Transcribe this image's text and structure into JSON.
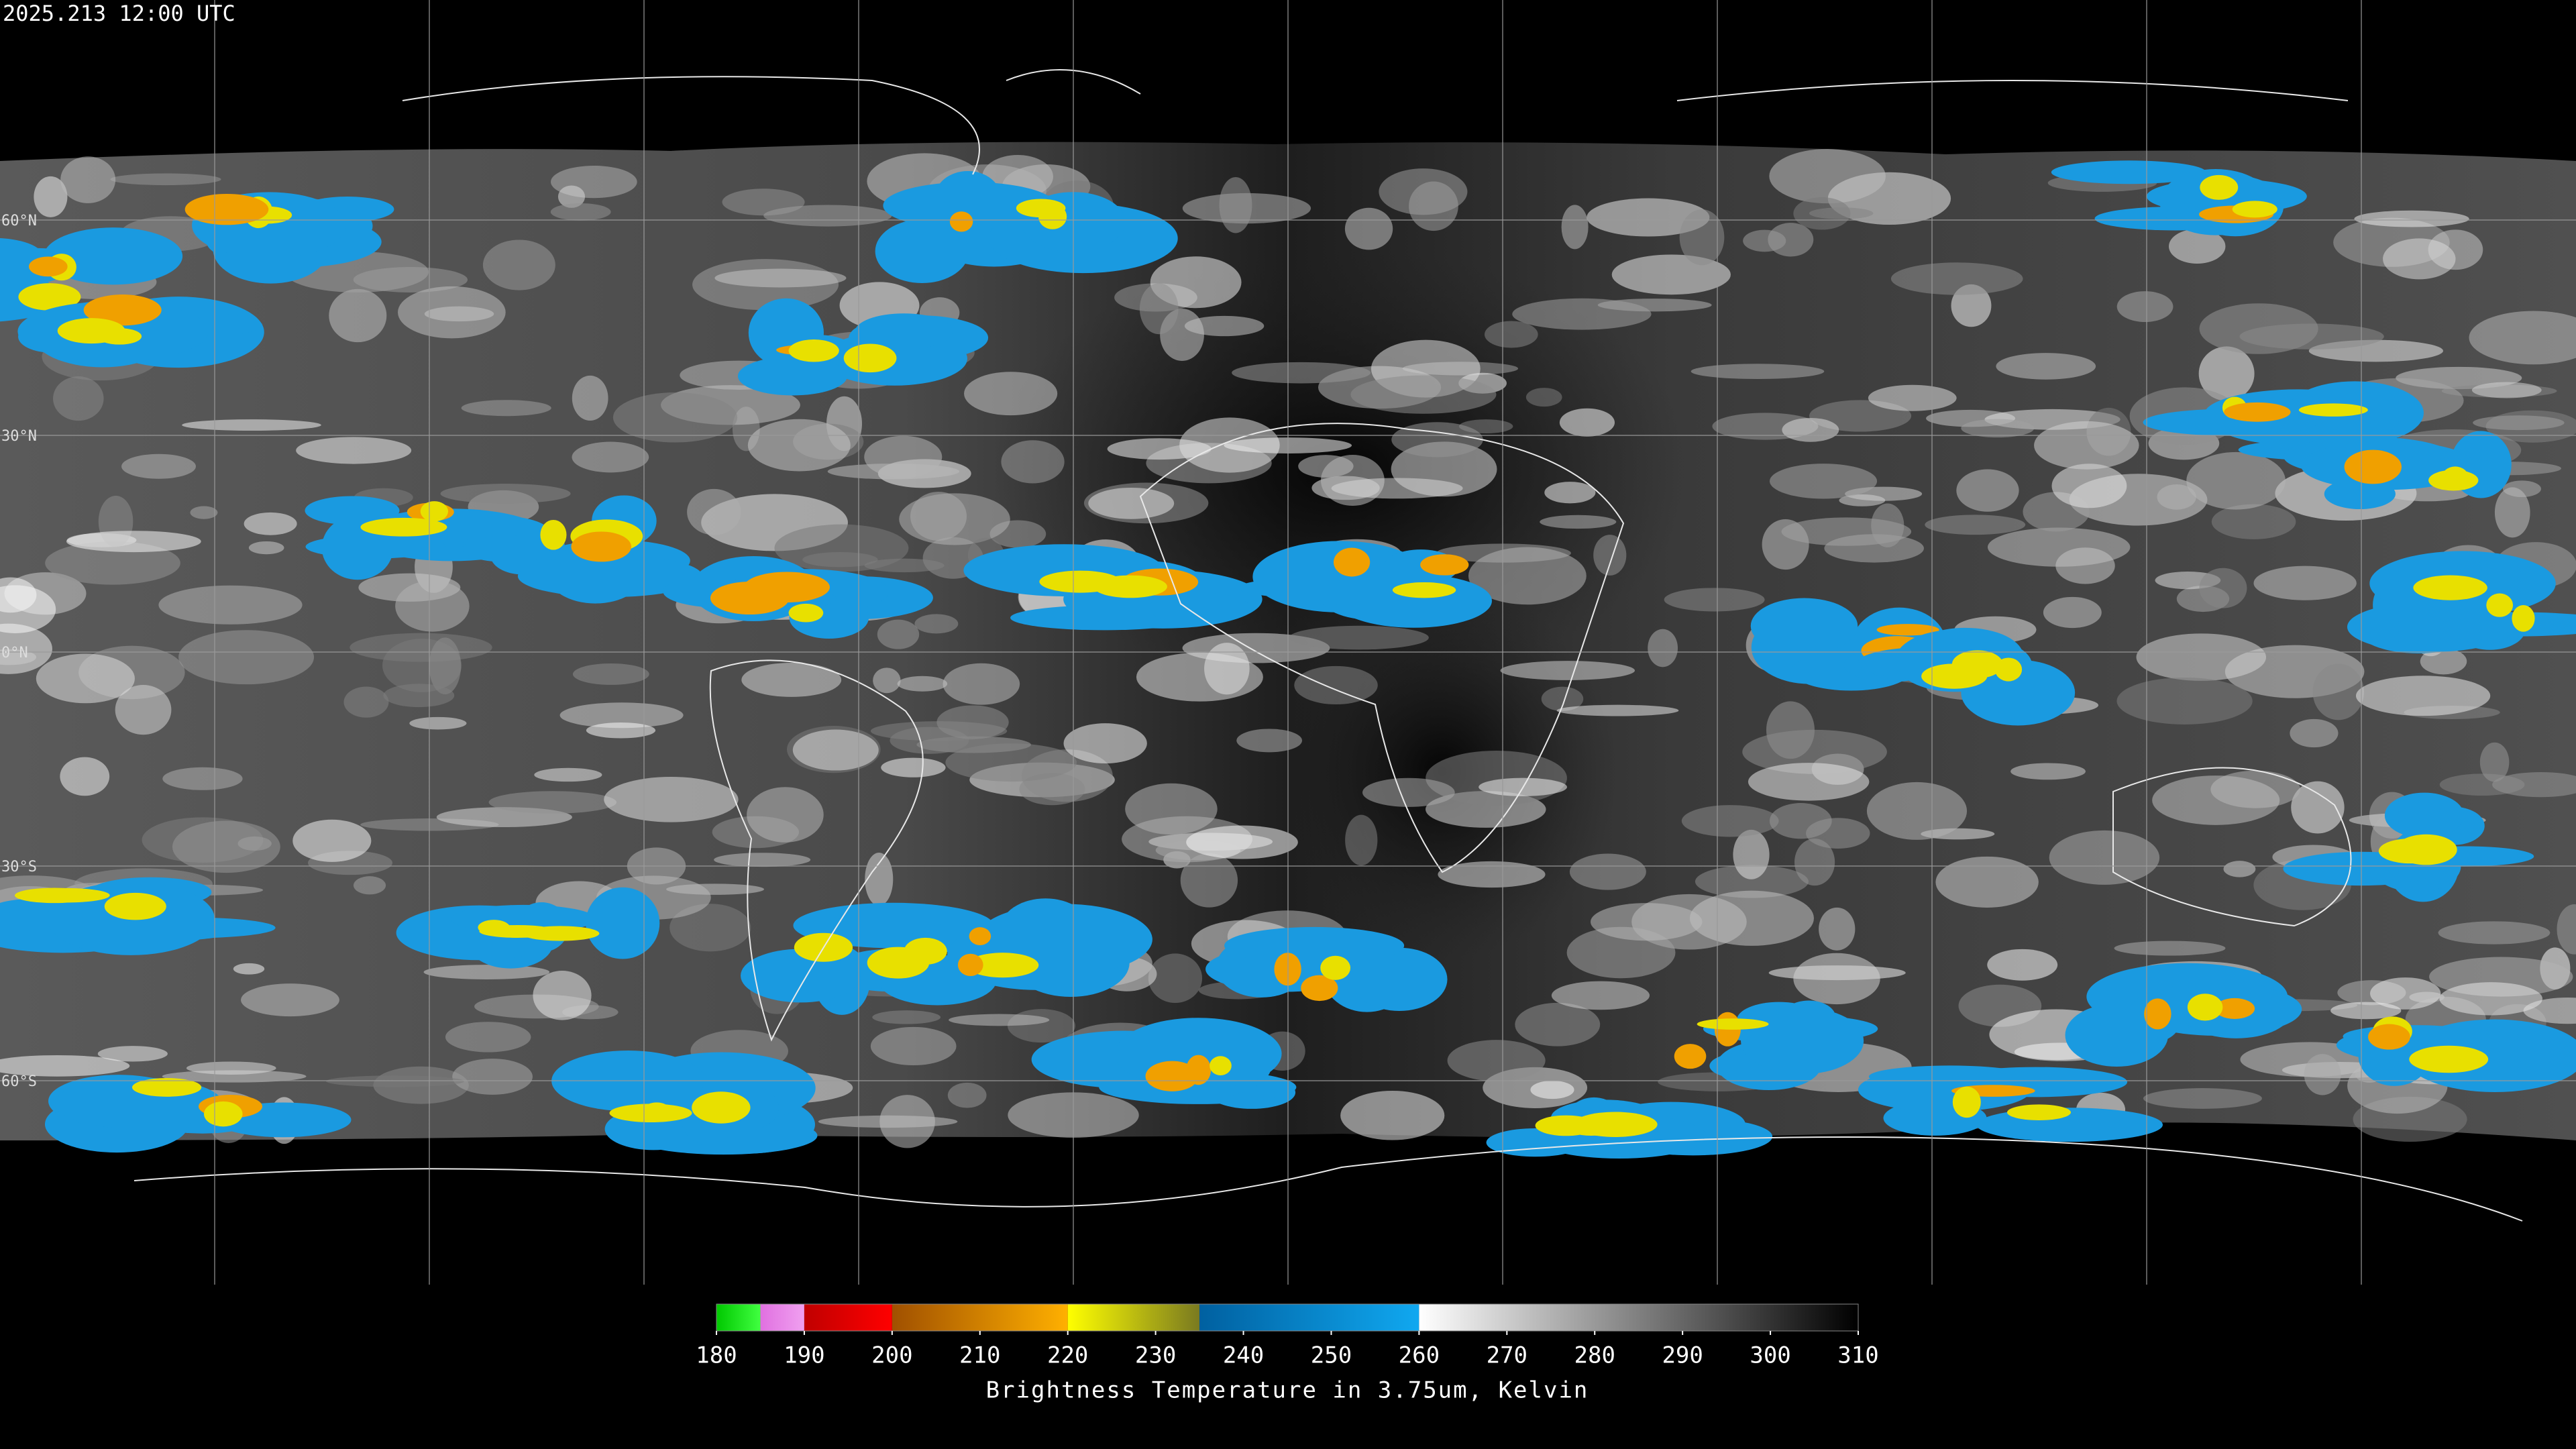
{
  "header": {
    "timestamp": "2025.213 12:00 UTC"
  },
  "latitude_labels": [
    "60°N",
    "30°N",
    "0°N",
    "30°S",
    "60°S"
  ],
  "colorbar": {
    "title": "Brightness Temperature in 3.75um, Kelvin",
    "range": [
      180,
      310
    ],
    "ticks": [
      180,
      190,
      200,
      210,
      220,
      230,
      240,
      250,
      260,
      270,
      280,
      290,
      300,
      310
    ],
    "segments": [
      {
        "from": 180,
        "to": 185,
        "colors": [
          "#00c800",
          "#40ff40"
        ]
      },
      {
        "from": 185,
        "to": 190,
        "colors": [
          "#e070e0",
          "#f0a0f0"
        ]
      },
      {
        "from": 190,
        "to": 200,
        "colors": [
          "#c00000",
          "#ff0000"
        ]
      },
      {
        "from": 200,
        "to": 220,
        "colors": [
          "#a05000",
          "#ffb000"
        ]
      },
      {
        "from": 220,
        "to": 235,
        "colors": [
          "#ffff00",
          "#7a7a20"
        ]
      },
      {
        "from": 235,
        "to": 260,
        "colors": [
          "#0060a0",
          "#10a8f0"
        ]
      },
      {
        "from": 260,
        "to": 310,
        "colors": [
          "#ffffff",
          "#000000"
        ]
      }
    ]
  }
}
